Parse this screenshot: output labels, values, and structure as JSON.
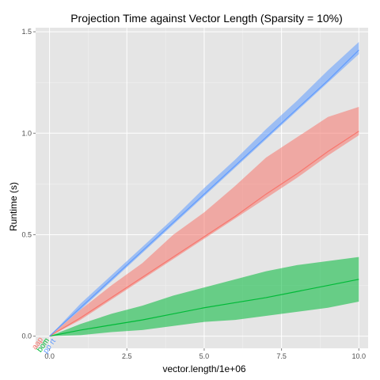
{
  "chart_data": {
    "type": "line",
    "title": "Projection Time against Vector Length (Sparsity = 10%)",
    "xlabel": "vector.length/1e+06",
    "ylabel": "Runtime (s)",
    "xlim": [
      -0.45,
      10.3
    ],
    "ylim": [
      -0.06,
      1.52
    ],
    "x_ticks": [
      0.0,
      2.5,
      5.0,
      7.5,
      10.0
    ],
    "x_tick_labels": [
      "0.0",
      "2.5",
      "5.0",
      "7.5",
      "10.0"
    ],
    "y_ticks": [
      0.0,
      0.5,
      1.0,
      1.5
    ],
    "y_tick_labels": [
      "0.0",
      "0.5",
      "1.0",
      "1.5"
    ],
    "grid": true,
    "panel_background": "#e5e5e5",
    "series": [
      {
        "color": "#619cff",
        "x": [
          0,
          1,
          2,
          3,
          4,
          5,
          6,
          7,
          8,
          9,
          10
        ],
        "median": [
          0.0,
          0.14,
          0.28,
          0.42,
          0.56,
          0.7,
          0.84,
          0.98,
          1.12,
          1.26,
          1.41
        ],
        "lower": [
          0.0,
          0.13,
          0.27,
          0.41,
          0.55,
          0.69,
          0.83,
          0.97,
          1.11,
          1.25,
          1.39
        ],
        "upper": [
          0.0,
          0.16,
          0.3,
          0.44,
          0.58,
          0.73,
          0.87,
          1.02,
          1.16,
          1.31,
          1.45
        ]
      },
      {
        "color": "#f8766d",
        "x": [
          0,
          1,
          2,
          3,
          4,
          5,
          6,
          7,
          8,
          9,
          10
        ],
        "median": [
          0.0,
          0.09,
          0.19,
          0.29,
          0.39,
          0.49,
          0.59,
          0.7,
          0.8,
          0.91,
          1.01
        ],
        "lower": [
          0.0,
          0.08,
          0.18,
          0.28,
          0.38,
          0.48,
          0.58,
          0.68,
          0.78,
          0.89,
          0.99
        ],
        "upper": [
          0.0,
          0.13,
          0.25,
          0.36,
          0.5,
          0.61,
          0.74,
          0.88,
          0.98,
          1.08,
          1.13
        ]
      },
      {
        "color": "#00ba38",
        "x": [
          0,
          1,
          2,
          3,
          4,
          5,
          6,
          7,
          8,
          9,
          10
        ],
        "median": [
          0.0,
          0.03,
          0.055,
          0.08,
          0.11,
          0.14,
          0.165,
          0.19,
          0.22,
          0.25,
          0.28
        ],
        "lower": [
          0.0,
          0.005,
          0.02,
          0.03,
          0.05,
          0.07,
          0.08,
          0.1,
          0.12,
          0.14,
          0.17
        ],
        "upper": [
          0.0,
          0.06,
          0.11,
          0.15,
          0.2,
          0.24,
          0.28,
          0.32,
          0.35,
          0.37,
          0.39
        ]
      }
    ],
    "legend_fragments": [
      {
        "text": "aap",
        "color": "#f8766d"
      },
      {
        "text": "bom",
        "color": "#00ba38"
      },
      {
        "text": "po rt",
        "color": "#619cff"
      }
    ]
  }
}
